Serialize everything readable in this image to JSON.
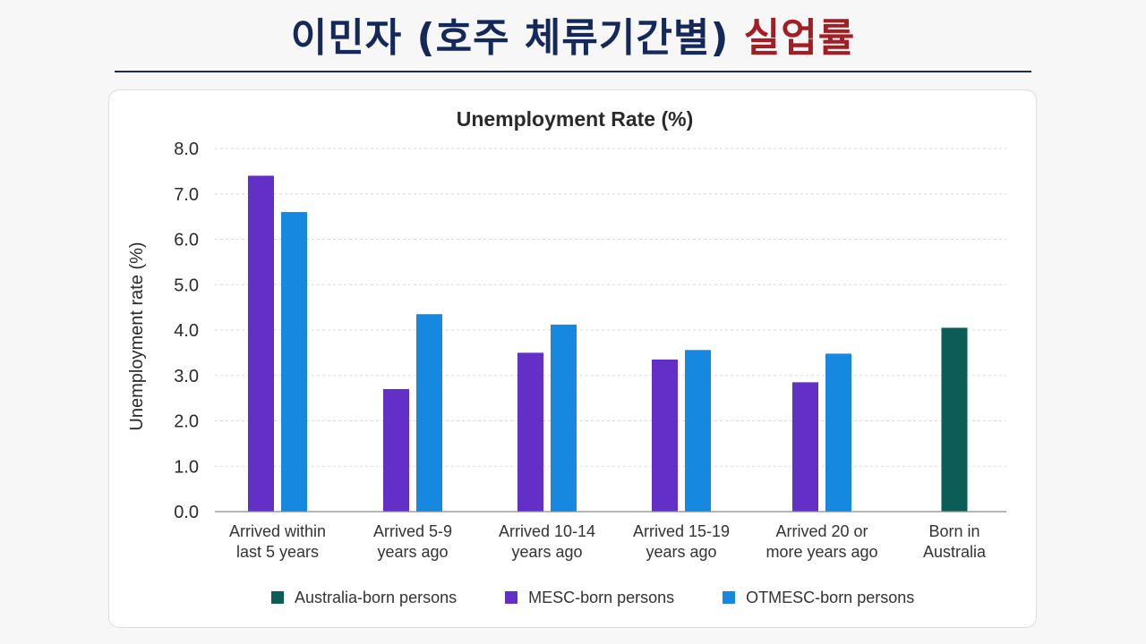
{
  "slide": {
    "title_main": "이민자 (호주 체류기간별)",
    "title_accent": "실업률"
  },
  "colors": {
    "title_main": "#14285a",
    "title_accent": "#a31d24",
    "australia_born": "#0b5e57",
    "mesc_born": "#6230c7",
    "otmesc_born": "#1688e0"
  },
  "chart_data": {
    "type": "bar",
    "title": "Unemployment Rate (%)",
    "ylabel": "Unemployment rate (%)",
    "xlabel": "",
    "ylim": [
      0,
      8
    ],
    "yticks": [
      "0.0",
      "1.0",
      "2.0",
      "3.0",
      "4.0",
      "5.0",
      "6.0",
      "7.0",
      "8.0"
    ],
    "grid": true,
    "legend_position": "bottom",
    "categories": [
      [
        "Arrived within",
        "last 5 years"
      ],
      [
        "Arrived 5-9",
        "years ago"
      ],
      [
        "Arrived 10-14",
        "years ago"
      ],
      [
        "Arrived 15-19",
        "years ago"
      ],
      [
        "Arrived 20 or",
        "more years ago"
      ],
      [
        "Born in",
        "Australia"
      ]
    ],
    "series": [
      {
        "name": "Australia-born persons",
        "color": "#0b5e57",
        "values": [
          null,
          null,
          null,
          null,
          null,
          4.05
        ]
      },
      {
        "name": "MESC-born persons",
        "color": "#6230c7",
        "values": [
          7.4,
          2.7,
          3.5,
          3.35,
          2.85,
          null
        ]
      },
      {
        "name": "OTMESC-born persons",
        "color": "#1688e0",
        "values": [
          6.6,
          4.35,
          4.12,
          3.56,
          3.48,
          null
        ]
      }
    ]
  }
}
